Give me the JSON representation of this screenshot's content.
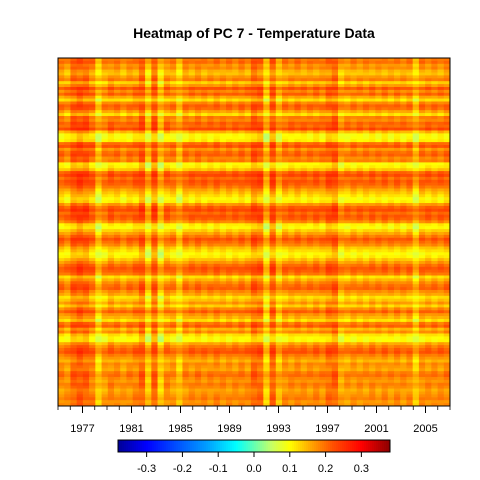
{
  "chart_data": {
    "type": "heatmap",
    "title": "Heatmap of PC 7  - Temperature Data",
    "x_range": [
      1975,
      2007
    ],
    "x_ticks": [
      1977,
      1981,
      1985,
      1989,
      1993,
      1997,
      2001,
      2005
    ],
    "x_tick_labels": [
      "1977",
      "1981",
      "1985",
      "1989",
      "1993",
      "1997",
      "2001",
      "2005"
    ],
    "color_scale": {
      "range": [
        -0.38,
        0.38
      ],
      "ticks": [
        -0.3,
        -0.2,
        -0.1,
        0.0,
        0.1,
        0.2,
        0.3
      ],
      "tick_labels": [
        "-0.3",
        "-0.2",
        "-0.1",
        "0.0",
        "0.1",
        "0.2",
        "0.3"
      ],
      "stops": [
        {
          "value": -0.38,
          "color": "#000096"
        },
        {
          "value": -0.3,
          "color": "#0000ff"
        },
        {
          "value": -0.13,
          "color": "#00a0ff"
        },
        {
          "value": -0.05,
          "color": "#00ffff"
        },
        {
          "value": 0.05,
          "color": "#c8ff64"
        },
        {
          "value": 0.1,
          "color": "#ffff00"
        },
        {
          "value": 0.16,
          "color": "#ffa500"
        },
        {
          "value": 0.22,
          "color": "#ff5000"
        },
        {
          "value": 0.3,
          "color": "#ff0000"
        },
        {
          "value": 0.38,
          "color": "#8b0000"
        }
      ]
    },
    "columns": [
      {
        "year": 1975.5,
        "col_effect": 0.0
      },
      {
        "year": 1976.0,
        "col_effect": -0.005
      },
      {
        "year": 1976.5,
        "col_effect": 0.028
      },
      {
        "year": 1977.0,
        "col_effect": 0.035
      },
      {
        "year": 1977.5,
        "col_effect": 0.03
      },
      {
        "year": 1978.0,
        "col_effect": 0.01
      },
      {
        "year": 1978.5,
        "col_effect": -0.045
      },
      {
        "year": 1979.0,
        "col_effect": -0.01
      },
      {
        "year": 1979.5,
        "col_effect": 0.005
      },
      {
        "year": 1980.0,
        "col_effect": 0.0
      },
      {
        "year": 1980.5,
        "col_effect": -0.008
      },
      {
        "year": 1981.0,
        "col_effect": 0.0
      },
      {
        "year": 1981.5,
        "col_effect": 0.005
      },
      {
        "year": 1982.0,
        "col_effect": 0.03
      },
      {
        "year": 1982.5,
        "col_effect": -0.04
      },
      {
        "year": 1983.0,
        "col_effect": 0.03
      },
      {
        "year": 1983.5,
        "col_effect": -0.045
      },
      {
        "year": 1984.0,
        "col_effect": 0.0
      },
      {
        "year": 1984.5,
        "col_effect": -0.005
      },
      {
        "year": 1985.0,
        "col_effect": -0.04
      },
      {
        "year": 1985.5,
        "col_effect": 0.0
      },
      {
        "year": 1986.0,
        "col_effect": 0.0
      },
      {
        "year": 1986.5,
        "col_effect": 0.005
      },
      {
        "year": 1987.0,
        "col_effect": 0.0
      },
      {
        "year": 1987.5,
        "col_effect": 0.0
      },
      {
        "year": 1988.0,
        "col_effect": 0.005
      },
      {
        "year": 1988.5,
        "col_effect": 0.0
      },
      {
        "year": 1989.0,
        "col_effect": 0.0
      },
      {
        "year": 1989.5,
        "col_effect": 0.0
      },
      {
        "year": 1990.0,
        "col_effect": 0.005
      },
      {
        "year": 1990.5,
        "col_effect": 0.0
      },
      {
        "year": 1991.0,
        "col_effect": 0.03
      },
      {
        "year": 1991.5,
        "col_effect": 0.025
      },
      {
        "year": 1992.0,
        "col_effect": -0.045
      },
      {
        "year": 1992.5,
        "col_effect": 0.03
      },
      {
        "year": 1993.0,
        "col_effect": -0.03
      },
      {
        "year": 1993.5,
        "col_effect": 0.0
      },
      {
        "year": 1994.0,
        "col_effect": 0.0
      },
      {
        "year": 1994.5,
        "col_effect": 0.005
      },
      {
        "year": 1995.0,
        "col_effect": 0.0
      },
      {
        "year": 1995.5,
        "col_effect": 0.0
      },
      {
        "year": 1996.0,
        "col_effect": 0.005
      },
      {
        "year": 1996.5,
        "col_effect": 0.0
      },
      {
        "year": 1997.0,
        "col_effect": 0.02
      },
      {
        "year": 1997.5,
        "col_effect": 0.03
      },
      {
        "year": 1998.0,
        "col_effect": -0.02
      },
      {
        "year": 1998.5,
        "col_effect": -0.01
      },
      {
        "year": 1999.0,
        "col_effect": -0.005
      },
      {
        "year": 1999.5,
        "col_effect": -0.005
      },
      {
        "year": 2000.0,
        "col_effect": -0.005
      },
      {
        "year": 2000.5,
        "col_effect": 0.0
      },
      {
        "year": 2001.0,
        "col_effect": -0.005
      },
      {
        "year": 2001.5,
        "col_effect": 0.0
      },
      {
        "year": 2002.0,
        "col_effect": -0.005
      },
      {
        "year": 2002.5,
        "col_effect": 0.0
      },
      {
        "year": 2003.0,
        "col_effect": -0.005
      },
      {
        "year": 2003.5,
        "col_effect": 0.0
      },
      {
        "year": 2004.0,
        "col_effect": -0.04
      },
      {
        "year": 2004.5,
        "col_effect": 0.0
      },
      {
        "year": 2005.0,
        "col_effect": 0.0
      },
      {
        "year": 2005.5,
        "col_effect": 0.0
      },
      {
        "year": 2006.0,
        "col_effect": 0.0
      },
      {
        "year": 2006.5,
        "col_effect": 0.005
      }
    ],
    "row_values": [
      0.19,
      0.2,
      0.17,
      0.18,
      0.15,
      0.14,
      0.17,
      0.19,
      0.13,
      0.17,
      0.22,
      0.18,
      0.21,
      0.16,
      0.12,
      0.18,
      0.21,
      0.2,
      0.16,
      0.12,
      0.19,
      0.18,
      0.21,
      0.2,
      0.23,
      0.15,
      0.1,
      0.1,
      0.11,
      0.2,
      0.22,
      0.17,
      0.2,
      0.21,
      0.18,
      0.19,
      0.1,
      0.11,
      0.14,
      0.21,
      0.23,
      0.2,
      0.22,
      0.21,
      0.19,
      0.16,
      0.14,
      0.12,
      0.1,
      0.11,
      0.17,
      0.21,
      0.23,
      0.2,
      0.22,
      0.21,
      0.18,
      0.11,
      0.1,
      0.13,
      0.16,
      0.19,
      0.22,
      0.2,
      0.18,
      0.14,
      0.12,
      0.1,
      0.11,
      0.14,
      0.17,
      0.2,
      0.22,
      0.21,
      0.19,
      0.12,
      0.15,
      0.18,
      0.2,
      0.21,
      0.18,
      0.16,
      0.12,
      0.14,
      0.17,
      0.13,
      0.18,
      0.21,
      0.17,
      0.15,
      0.12,
      0.19,
      0.21,
      0.15,
      0.18,
      0.12,
      0.1,
      0.1,
      0.16,
      0.19,
      0.21,
      0.22,
      0.19,
      0.17,
      0.15,
      0.18,
      0.17,
      0.16,
      0.19,
      0.2,
      0.18,
      0.17,
      0.19,
      0.18,
      0.16,
      0.17,
      0.18,
      0.19,
      0.17,
      0.18
    ]
  }
}
